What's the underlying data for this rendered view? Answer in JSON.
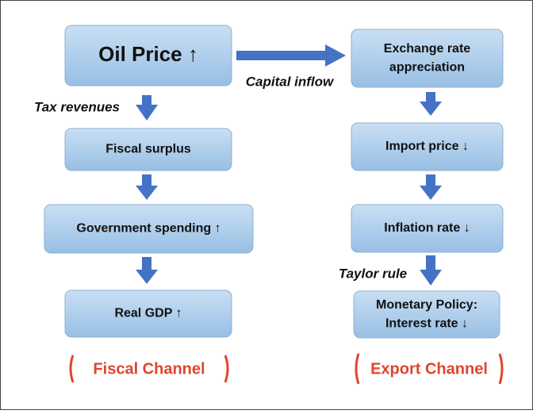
{
  "nodes": [
    {
      "lines": [
        "Oil Price ↑"
      ]
    },
    {
      "lines": [
        "Exchange rate",
        "appreciation"
      ]
    },
    {
      "lines": [
        "Fiscal surplus"
      ]
    },
    {
      "lines": [
        "Government spending ↑"
      ]
    },
    {
      "lines": [
        "Real GDP ↑"
      ]
    },
    {
      "lines": [
        "Import price ↓"
      ]
    },
    {
      "lines": [
        "Inflation rate ↓"
      ]
    },
    {
      "lines": [
        "Monetary Policy:",
        "Interest rate ↓"
      ]
    }
  ],
  "edge_labels": [
    "Capital inflow",
    "Tax revenues",
    "Taylor rule"
  ],
  "channels": [
    "Fiscal Channel",
    "Export Channel"
  ]
}
